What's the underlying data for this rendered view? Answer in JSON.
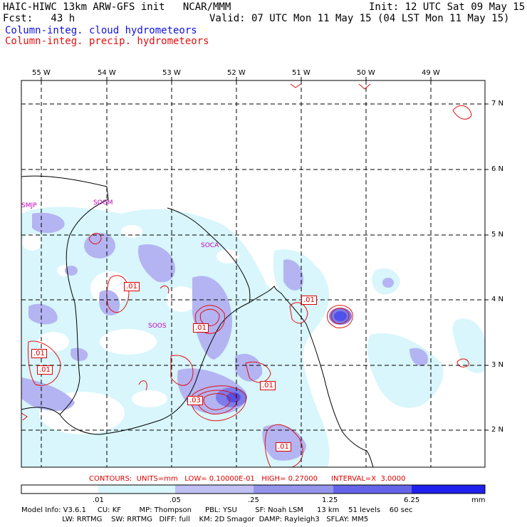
{
  "header": {
    "line1_left": "HAIC-HIWC 13km ARW-GFS init   NCAR/MMM",
    "line1_right": "Init: 12 UTC Sat 09 May 15",
    "line2_left": "Fcst:   43 h",
    "line2_right": "Valid: 07 UTC Mon 11 May 15 (04 LST Mon 11 May 15)",
    "legend_cloud": "Column-integ. cloud hydrometeors",
    "legend_precip": "Column-integ. precip. hydrometeors"
  },
  "longitude_labels": [
    "55 W",
    "54 W",
    "53 W",
    "52 W",
    "51 W",
    "50 W",
    "49 W"
  ],
  "latitude_labels": [
    "7 N",
    "6 N",
    "5 N",
    "4 N",
    "3 N",
    "2 N"
  ],
  "stations": [
    "SMJP",
    "SOGM",
    "SOCA",
    "SOOS"
  ],
  "contour_labels": [
    ".01",
    ".01",
    ".01",
    ".01",
    ".01",
    ".01",
    ".03",
    ".01",
    ".01"
  ],
  "contour_info": "CONTOURS:  UNITS=mm   LOW= 0.10000E-01   HIGH= 0.27000      INTERVAL=X  3.0000",
  "colorbar": {
    "ticks": [
      ".01",
      ".05",
      ".25",
      "1.25",
      "6.25"
    ],
    "units": "mm",
    "colors": [
      "#ffffff",
      "#d8f6fb",
      "#c0c0f4",
      "#9494ec",
      "#6464ea",
      "#2828ee",
      "#1010e0"
    ]
  },
  "model_info": {
    "line1": "Model Info: V3.6.1     CU: KF        MP: Thompson      PBL: YSU        SF: Noah LSM      13 km    51 levels    60 sec",
    "line2": "                  LW: RRTMG    SW: RRTMG   DIFF: full    KM: 2D Smagor  DAMP: Rayleigh3   SFLAY: MM5"
  }
}
